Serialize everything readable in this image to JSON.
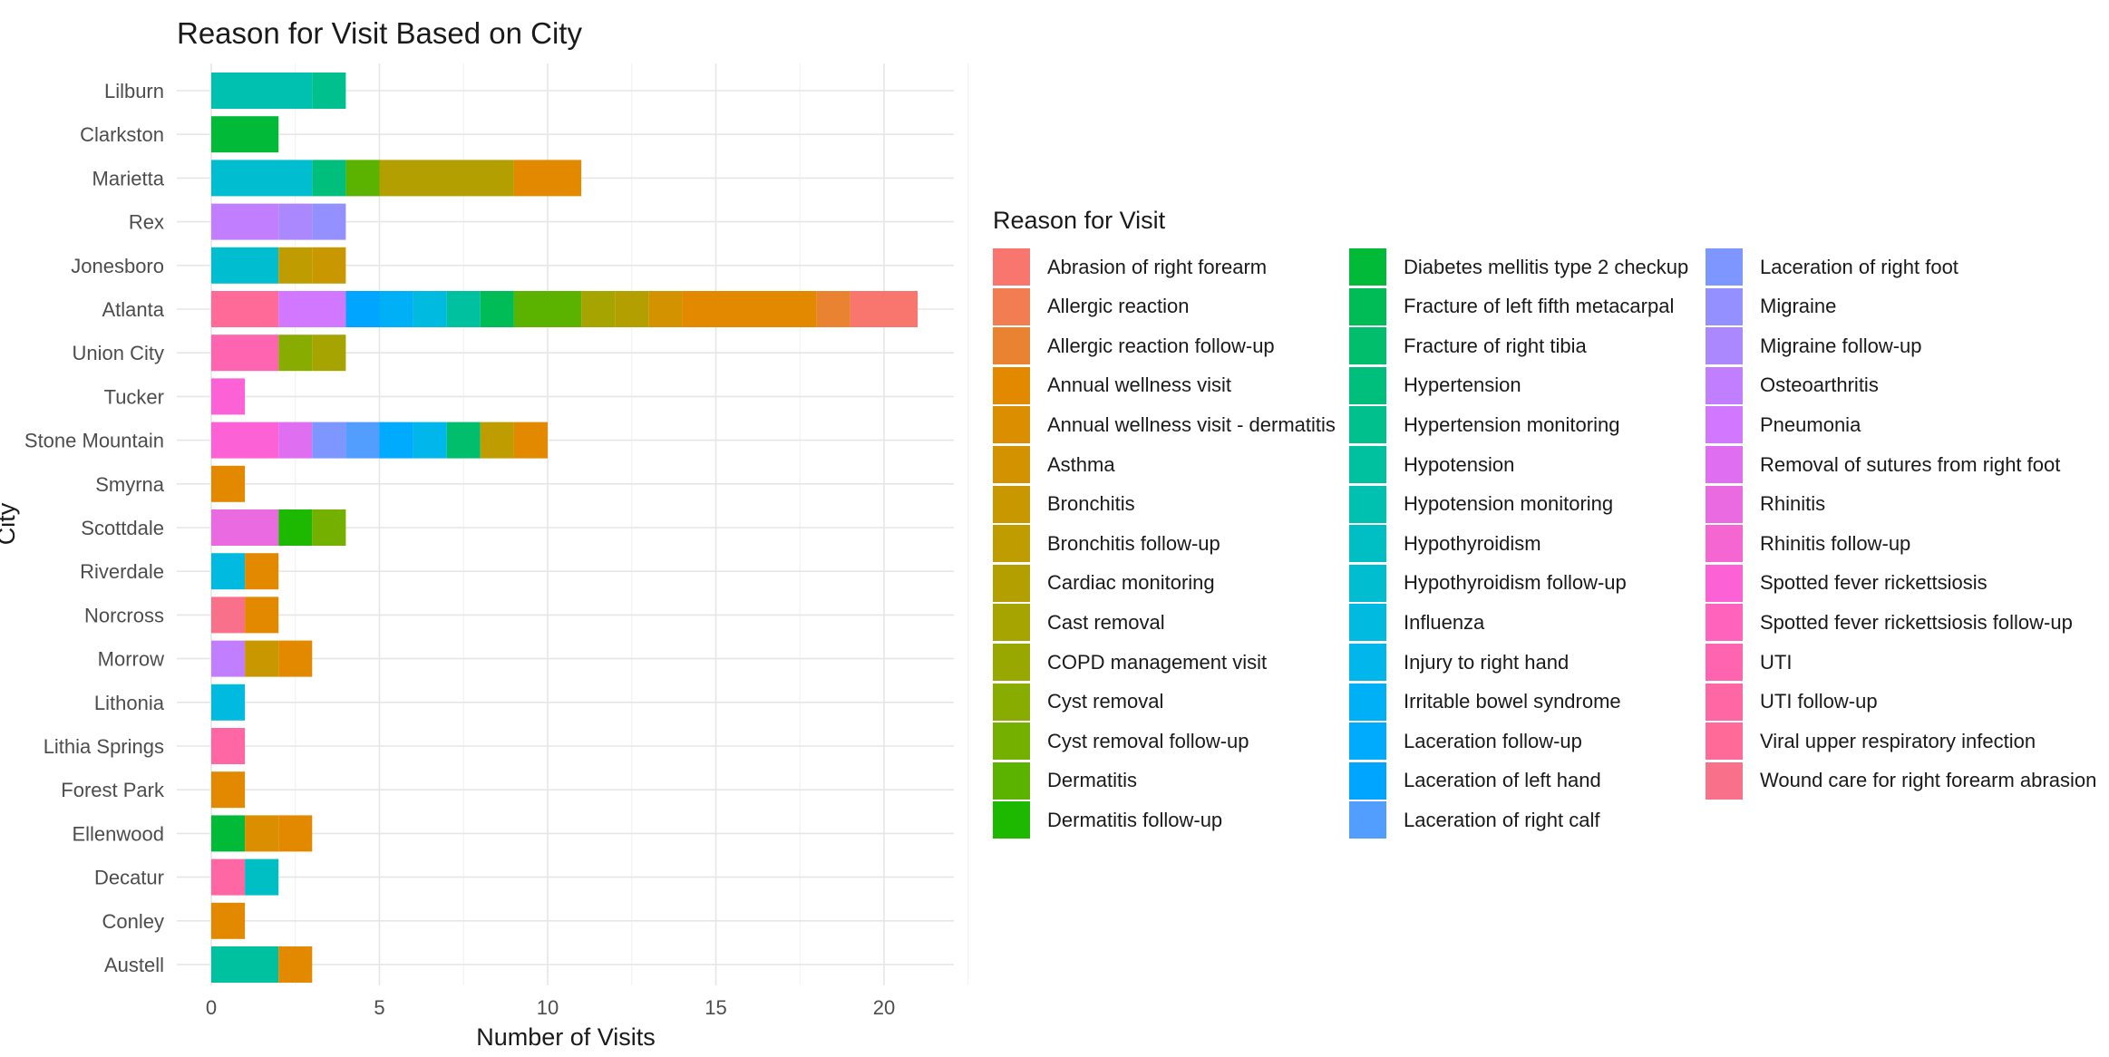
{
  "chart_data": {
    "type": "bar",
    "orientation": "horizontal",
    "stacked": true,
    "title": "Reason for Visit Based on City",
    "xlabel": "Number of Visits",
    "ylabel": "City",
    "xlim": [
      0,
      21
    ],
    "xticks": [
      0,
      5,
      10,
      15,
      20
    ],
    "grid": true,
    "legend_title": "Reason for Visit",
    "legend_position": "right",
    "categories": [
      "Lilburn",
      "Clarkston",
      "Marietta",
      "Rex",
      "Jonesboro",
      "Atlanta",
      "Union City",
      "Tucker",
      "Stone Mountain",
      "Smyrna",
      "Scottdale",
      "Riverdale",
      "Norcross",
      "Morrow",
      "Lithonia",
      "Lithia Springs",
      "Forest Park",
      "Ellenwood",
      "Decatur",
      "Conley",
      "Austell"
    ],
    "reasons": [
      {
        "name": "Abrasion of right forearm",
        "color": "#F8766D"
      },
      {
        "name": "Allergic reaction",
        "color": "#F27D52"
      },
      {
        "name": "Allergic reaction follow-up",
        "color": "#EA8331"
      },
      {
        "name": "Annual wellness visit",
        "color": "#E38900"
      },
      {
        "name": "Annual wellness visit - dermatitis",
        "color": "#DB8E00"
      },
      {
        "name": "Asthma",
        "color": "#D39200"
      },
      {
        "name": "Bronchitis",
        "color": "#C99800"
      },
      {
        "name": "Bronchitis follow-up",
        "color": "#BF9C00"
      },
      {
        "name": "Cardiac monitoring",
        "color": "#B3A000"
      },
      {
        "name": "Cast removal",
        "color": "#A6A400"
      },
      {
        "name": "COPD management visit",
        "color": "#98A800"
      },
      {
        "name": "Cyst removal",
        "color": "#88AC00"
      },
      {
        "name": "Cyst removal follow-up",
        "color": "#74B000"
      },
      {
        "name": "Dermatitis",
        "color": "#5BB300"
      },
      {
        "name": "Dermatitis follow-up",
        "color": "#1DB800"
      },
      {
        "name": "Diabetes mellitis type 2 checkup",
        "color": "#00BA38"
      },
      {
        "name": "Fracture of left fifth metacarpal",
        "color": "#00BC56"
      },
      {
        "name": "Fracture of right tibia",
        "color": "#00BE6C"
      },
      {
        "name": "Hypertension",
        "color": "#00BF7D"
      },
      {
        "name": "Hypertension monitoring",
        "color": "#00C08E"
      },
      {
        "name": "Hypotension",
        "color": "#00C19F"
      },
      {
        "name": "Hypotension monitoring",
        "color": "#00C0AF"
      },
      {
        "name": "Hypothyroidism",
        "color": "#00BFC4"
      },
      {
        "name": "Hypothyroidism follow-up",
        "color": "#00BDD0"
      },
      {
        "name": "Influenza",
        "color": "#00BAE0"
      },
      {
        "name": "Injury to right hand",
        "color": "#00B6EB"
      },
      {
        "name": "Irritable bowel syndrome",
        "color": "#00B0F6"
      },
      {
        "name": "Laceration follow-up",
        "color": "#00AAFD"
      },
      {
        "name": "Laceration of left hand",
        "color": "#00A5FF"
      },
      {
        "name": "Laceration of right calf",
        "color": "#529EFF"
      },
      {
        "name": "Laceration of right foot",
        "color": "#7E96FF"
      },
      {
        "name": "Migraine",
        "color": "#9590FF"
      },
      {
        "name": "Migraine follow-up",
        "color": "#AC88FF"
      },
      {
        "name": "Osteoarthritis",
        "color": "#C17FFF"
      },
      {
        "name": "Pneumonia",
        "color": "#D277FF"
      },
      {
        "name": "Removal of sutures from right foot",
        "color": "#E06EF0"
      },
      {
        "name": "Rhinitis",
        "color": "#EA6AE2"
      },
      {
        "name": "Rhinitis follow-up",
        "color": "#F666D3"
      },
      {
        "name": "Spotted fever rickettsiosis",
        "color": "#FC61D5"
      },
      {
        "name": "Spotted fever rickettsiosis follow-up",
        "color": "#FF63BC"
      },
      {
        "name": "UTI",
        "color": "#FF64B0"
      },
      {
        "name": "UTI follow-up",
        "color": "#FF67A4"
      },
      {
        "name": "Viral upper respiratory infection",
        "color": "#FF6A98"
      },
      {
        "name": "Wound care for right forearm abrasion",
        "color": "#F9708A"
      }
    ],
    "stacks": {
      "Lilburn": [
        [
          "Hypotension monitoring",
          3
        ],
        [
          "Hypertension monitoring",
          1
        ]
      ],
      "Clarkston": [
        [
          "Diabetes mellitis type 2 checkup",
          2
        ]
      ],
      "Marietta": [
        [
          "Hypothyroidism follow-up",
          3
        ],
        [
          "Hypertension",
          1
        ],
        [
          "Dermatitis",
          1
        ],
        [
          "Cardiac monitoring",
          4
        ],
        [
          "Annual wellness visit",
          2
        ]
      ],
      "Rex": [
        [
          "Osteoarthritis",
          2
        ],
        [
          "Migraine follow-up",
          1
        ],
        [
          "Migraine",
          1
        ]
      ],
      "Jonesboro": [
        [
          "Hypothyroidism follow-up",
          2
        ],
        [
          "Bronchitis follow-up",
          1
        ],
        [
          "Bronchitis",
          1
        ]
      ],
      "Atlanta": [
        [
          "Viral upper respiratory infection",
          2
        ],
        [
          "Pneumonia",
          2
        ],
        [
          "Laceration of left hand",
          1
        ],
        [
          "Irritable bowel syndrome",
          1
        ],
        [
          "Influenza",
          1
        ],
        [
          "Hypotension",
          1
        ],
        [
          "Fracture of left fifth metacarpal",
          1
        ],
        [
          "Dermatitis",
          2
        ],
        [
          "Cast removal",
          1
        ],
        [
          "Cardiac monitoring",
          1
        ],
        [
          "Asthma",
          1
        ],
        [
          "Annual wellness visit",
          4
        ],
        [
          "Allergic reaction follow-up",
          1
        ],
        [
          "Abrasion of right forearm",
          2
        ]
      ],
      "Union City": [
        [
          "UTI",
          2
        ],
        [
          "Cyst removal",
          1
        ],
        [
          "Cast removal",
          1
        ]
      ],
      "Tucker": [
        [
          "Spotted fever rickettsiosis",
          1
        ]
      ],
      "Stone Mountain": [
        [
          "Spotted fever rickettsiosis",
          2
        ],
        [
          "Removal of sutures from right foot",
          1
        ],
        [
          "Laceration of right foot",
          1
        ],
        [
          "Laceration of right calf",
          1
        ],
        [
          "Laceration follow-up",
          1
        ],
        [
          "Injury to right hand",
          1
        ],
        [
          "Fracture of right tibia",
          1
        ],
        [
          "Bronchitis follow-up",
          1
        ],
        [
          "Annual wellness visit",
          1
        ]
      ],
      "Smyrna": [
        [
          "Annual wellness visit",
          1
        ]
      ],
      "Scottdale": [
        [
          "Rhinitis",
          2
        ],
        [
          "Dermatitis follow-up",
          1
        ],
        [
          "Cyst removal follow-up",
          1
        ]
      ],
      "Riverdale": [
        [
          "Influenza",
          1
        ],
        [
          "Annual wellness visit",
          1
        ]
      ],
      "Norcross": [
        [
          "Wound care for right forearm abrasion",
          1
        ],
        [
          "Annual wellness visit",
          1
        ]
      ],
      "Morrow": [
        [
          "Osteoarthritis",
          1
        ],
        [
          "Bronchitis",
          1
        ],
        [
          "Annual wellness visit",
          1
        ]
      ],
      "Lithonia": [
        [
          "Influenza",
          1
        ]
      ],
      "Lithia Springs": [
        [
          "UTI follow-up",
          1
        ]
      ],
      "Forest Park": [
        [
          "Annual wellness visit",
          1
        ]
      ],
      "Ellenwood": [
        [
          "Diabetes mellitis type 2 checkup",
          1
        ],
        [
          "Annual wellness visit - dermatitis",
          1
        ],
        [
          "Annual wellness visit",
          1
        ]
      ],
      "Decatur": [
        [
          "UTI follow-up",
          1
        ],
        [
          "Hypothyroidism",
          1
        ]
      ],
      "Conley": [
        [
          "Annual wellness visit",
          1
        ]
      ],
      "Austell": [
        [
          "Hypotension",
          2
        ],
        [
          "Annual wellness visit",
          1
        ]
      ]
    }
  }
}
